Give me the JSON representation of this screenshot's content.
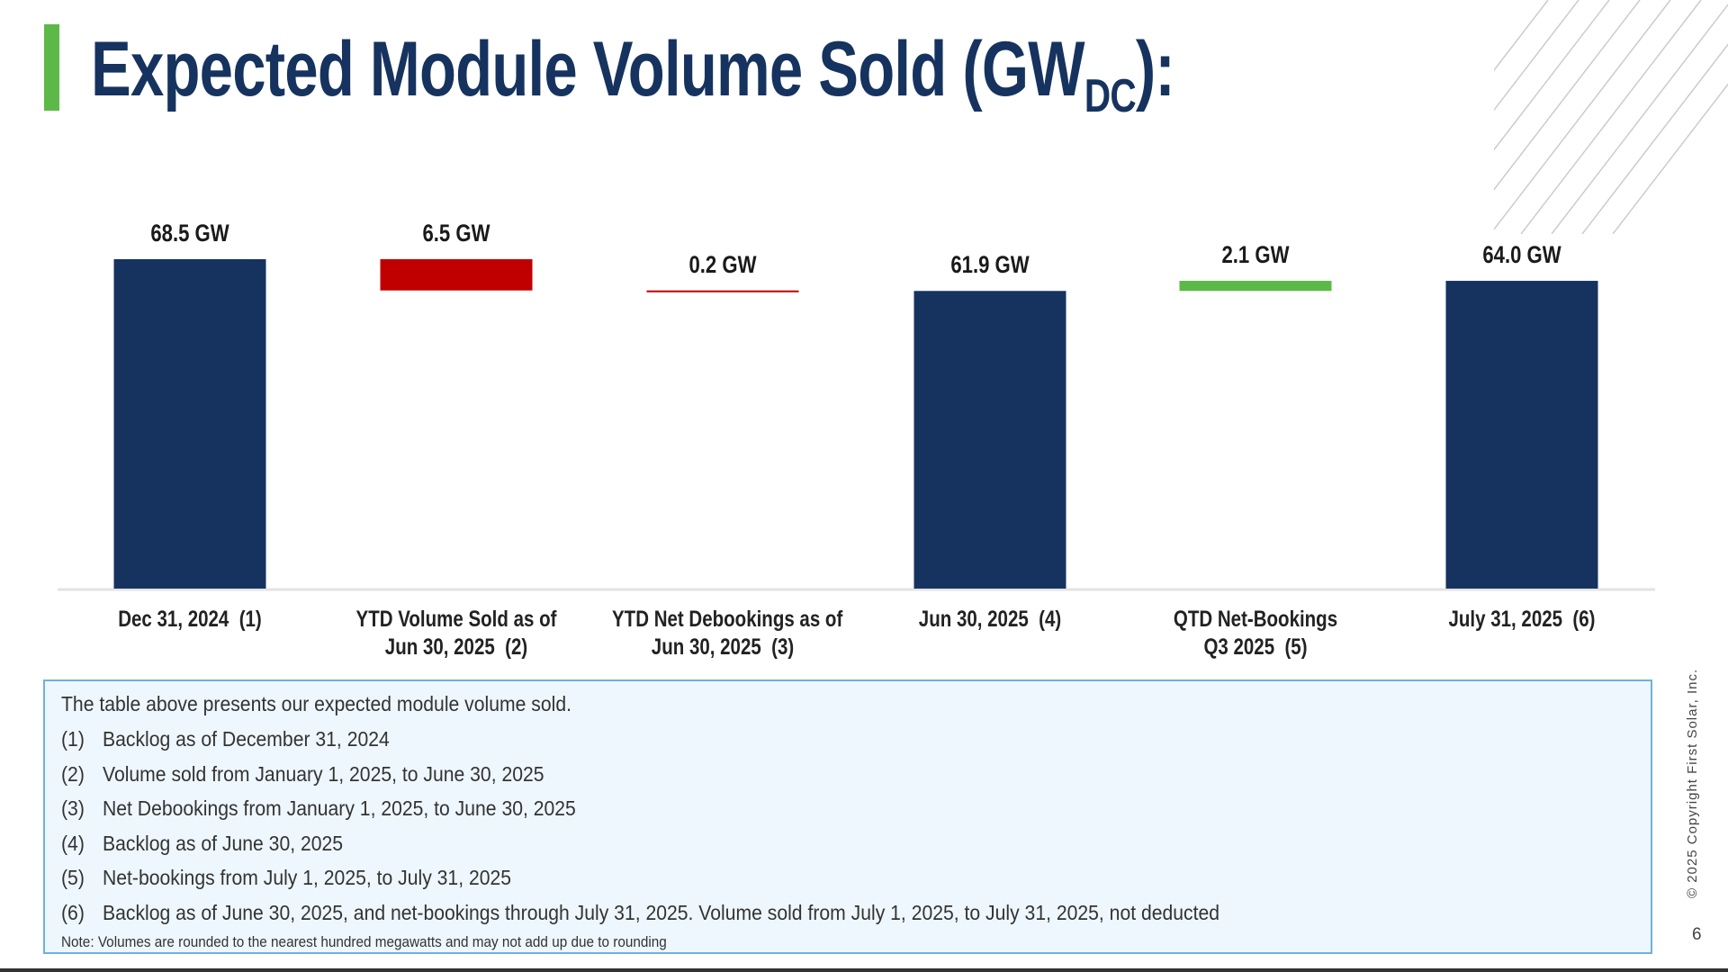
{
  "title": {
    "main": "Expected Module Volume Sold (GW",
    "sub": "DC",
    "end": "):"
  },
  "colors": {
    "navy": "#16335f",
    "red": "#c00000",
    "green": "#5cb947",
    "accent": "#5cb947",
    "notes_bg": "#eef7fd",
    "notes_border": "#6cb2dc"
  },
  "chart_data": {
    "type": "waterfall-bar",
    "unit": "GW",
    "categories": [
      "Dec 31, 2024  (1)",
      "YTD Volume Sold as of Jun 30, 2025  (2)",
      "YTD Net Debookings as of Jun 30, 2025  (3)",
      "Jun 30, 2025  (4)",
      "QTD Net-Bookings Q3 2025  (5)",
      "July 31, 2025  (6)"
    ],
    "category_lines": [
      [
        "Dec 31, 2024  (1)"
      ],
      [
        "YTD Volume Sold as of",
        "Jun 30, 2025  (2)"
      ],
      [
        "YTD Net Debookings as of",
        "Jun 30, 2025  (3)"
      ],
      [
        "Jun 30, 2025  (4)"
      ],
      [
        "QTD Net-Bookings",
        "Q3 2025  (5)"
      ],
      [
        "July 31, 2025  (6)"
      ]
    ],
    "values": [
      68.5,
      -6.5,
      -0.2,
      61.9,
      2.1,
      64.0
    ],
    "kinds": [
      "total",
      "decrease",
      "decrease",
      "total",
      "increase",
      "total"
    ],
    "data_labels": [
      "68.5 GW",
      "6.5 GW",
      "0.2 GW",
      "61.9 GW",
      "2.1 GW",
      "64.0 GW"
    ],
    "ylim": [
      0,
      68.5
    ],
    "grid": false,
    "legend": "none"
  },
  "notes": {
    "intro": "The table above presents our expected module volume sold.",
    "items": [
      {
        "num": "(1)",
        "text": "Backlog as of December 31, 2024"
      },
      {
        "num": "(2)",
        "text": "Volume sold from January 1, 2025, to June 30, 2025"
      },
      {
        "num": "(3)",
        "text": "Net Debookings from January 1, 2025, to June 30, 2025"
      },
      {
        "num": "(4)",
        "text": "Backlog as of June 30, 2025"
      },
      {
        "num": "(5)",
        "text": "Net-bookings from July 1, 2025, to July 31, 2025"
      },
      {
        "num": "(6)",
        "text": "Backlog as of June 30, 2025, and net-bookings through July 31, 2025.  Volume sold from July 1, 2025, to July 31, 2025, not deducted"
      }
    ],
    "footnote": "Note: Volumes are rounded to the nearest hundred megawatts and may not add up due to rounding"
  },
  "footer": {
    "copyright": "© 2025 Copyright First Solar, Inc.",
    "page": "6"
  }
}
